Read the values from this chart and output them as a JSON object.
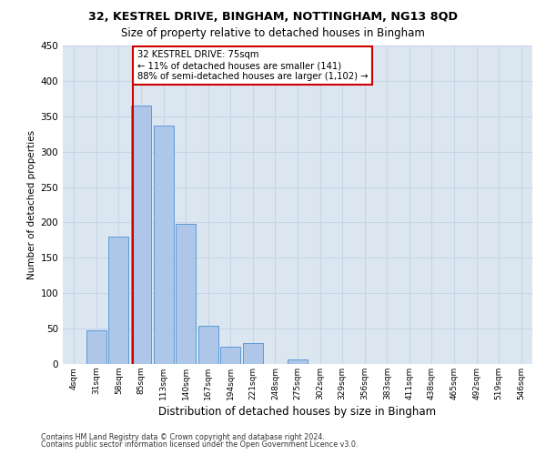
{
  "title1": "32, KESTREL DRIVE, BINGHAM, NOTTINGHAM, NG13 8QD",
  "title2": "Size of property relative to detached houses in Bingham",
  "xlabel": "Distribution of detached houses by size in Bingham",
  "ylabel": "Number of detached properties",
  "footnote1": "Contains HM Land Registry data © Crown copyright and database right 2024.",
  "footnote2": "Contains public sector information licensed under the Open Government Licence v3.0.",
  "bin_labels": [
    "4sqm",
    "31sqm",
    "58sqm",
    "85sqm",
    "113sqm",
    "140sqm",
    "167sqm",
    "194sqm",
    "221sqm",
    "248sqm",
    "275sqm",
    "302sqm",
    "329sqm",
    "356sqm",
    "383sqm",
    "411sqm",
    "438sqm",
    "465sqm",
    "492sqm",
    "519sqm",
    "546sqm"
  ],
  "bar_values": [
    0,
    47,
    180,
    365,
    337,
    198,
    54,
    25,
    30,
    0,
    6,
    0,
    0,
    0,
    0,
    0,
    0,
    0,
    0,
    0,
    0
  ],
  "bar_color": "#aec6e8",
  "bar_edgecolor": "#5b9bd5",
  "ylim_max": 450,
  "yticks": [
    0,
    50,
    100,
    150,
    200,
    250,
    300,
    350,
    400,
    450
  ],
  "red_line_x": 2.63,
  "annotation_line1": "32 KESTREL DRIVE: 75sqm",
  "annotation_line2": "← 11% of detached houses are smaller (141)",
  "annotation_line3": "88% of semi-detached houses are larger (1,102) →",
  "annotation_box_edgecolor": "#cc0000",
  "grid_color": "#c8d4e8",
  "bg_color": "#dce6f0"
}
